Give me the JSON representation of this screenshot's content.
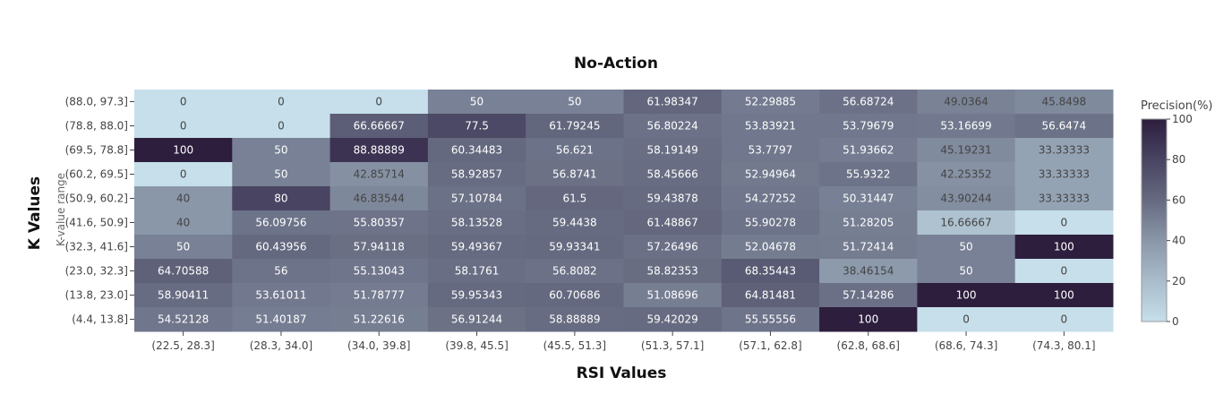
{
  "chart_data": {
    "type": "heatmap",
    "title": "No-Action",
    "xlabel": "RSI Values",
    "ylabel": "K Values",
    "y_subtitle": "K-value range",
    "colorbar_title": "Precision(%)",
    "colorbar_ticks": [
      "0",
      "20",
      "40",
      "60",
      "80",
      "100"
    ],
    "zlim": [
      0,
      100
    ],
    "colors": {
      "low": "#c6dfea",
      "high": "#2d1e3e"
    },
    "x_categories": [
      "(22.5, 28.3]",
      "(28.3, 34.0]",
      "(34.0, 39.8]",
      "(39.8, 45.5]",
      "(45.5, 51.3]",
      "(51.3, 57.1]",
      "(57.1, 62.8]",
      "(62.8, 68.6]",
      "(68.6, 74.3]",
      "(74.3, 80.1]"
    ],
    "y_categories": [
      "(88.0, 97.3]",
      "(78.8, 88.0]",
      "(69.5, 78.8]",
      "(60.2, 69.5]",
      "(50.9, 60.2]",
      "(41.6, 50.9]",
      "(32.3, 41.6]",
      "(23.0, 32.3]",
      "(13.8, 23.0]",
      "(4.4, 13.8]"
    ],
    "values": [
      [
        "0",
        "0",
        "0",
        "50",
        "50",
        "61.98347",
        "52.29885",
        "56.68724",
        "49.0364",
        "45.8498"
      ],
      [
        "0",
        "0",
        "66.66667",
        "77.5",
        "61.79245",
        "56.80224",
        "53.83921",
        "53.79679",
        "53.16699",
        "56.6474"
      ],
      [
        "100",
        "50",
        "88.88889",
        "60.34483",
        "56.621",
        "58.19149",
        "53.7797",
        "51.93662",
        "45.19231",
        "33.33333"
      ],
      [
        "0",
        "50",
        "42.85714",
        "58.92857",
        "56.8741",
        "58.45666",
        "52.94964",
        "55.9322",
        "42.25352",
        "33.33333"
      ],
      [
        "40",
        "80",
        "46.83544",
        "57.10784",
        "61.5",
        "59.43878",
        "54.27252",
        "50.31447",
        "43.90244",
        "33.33333"
      ],
      [
        "40",
        "56.09756",
        "55.80357",
        "58.13528",
        "59.4438",
        "61.48867",
        "55.90278",
        "51.28205",
        "16.66667",
        "0"
      ],
      [
        "50",
        "60.43956",
        "57.94118",
        "59.49367",
        "59.93341",
        "57.26496",
        "52.04678",
        "51.72414",
        "50",
        "100"
      ],
      [
        "64.70588",
        "56",
        "55.13043",
        "58.1761",
        "56.8082",
        "58.82353",
        "68.35443",
        "38.46154",
        "50",
        "0"
      ],
      [
        "58.90411",
        "53.61011",
        "51.78777",
        "59.95343",
        "60.70686",
        "51.08696",
        "64.81481",
        "57.14286",
        "100",
        "100"
      ],
      [
        "54.52128",
        "51.40187",
        "51.22616",
        "56.91244",
        "58.88889",
        "59.42029",
        "55.55556",
        "100",
        "0",
        "0"
      ]
    ]
  }
}
